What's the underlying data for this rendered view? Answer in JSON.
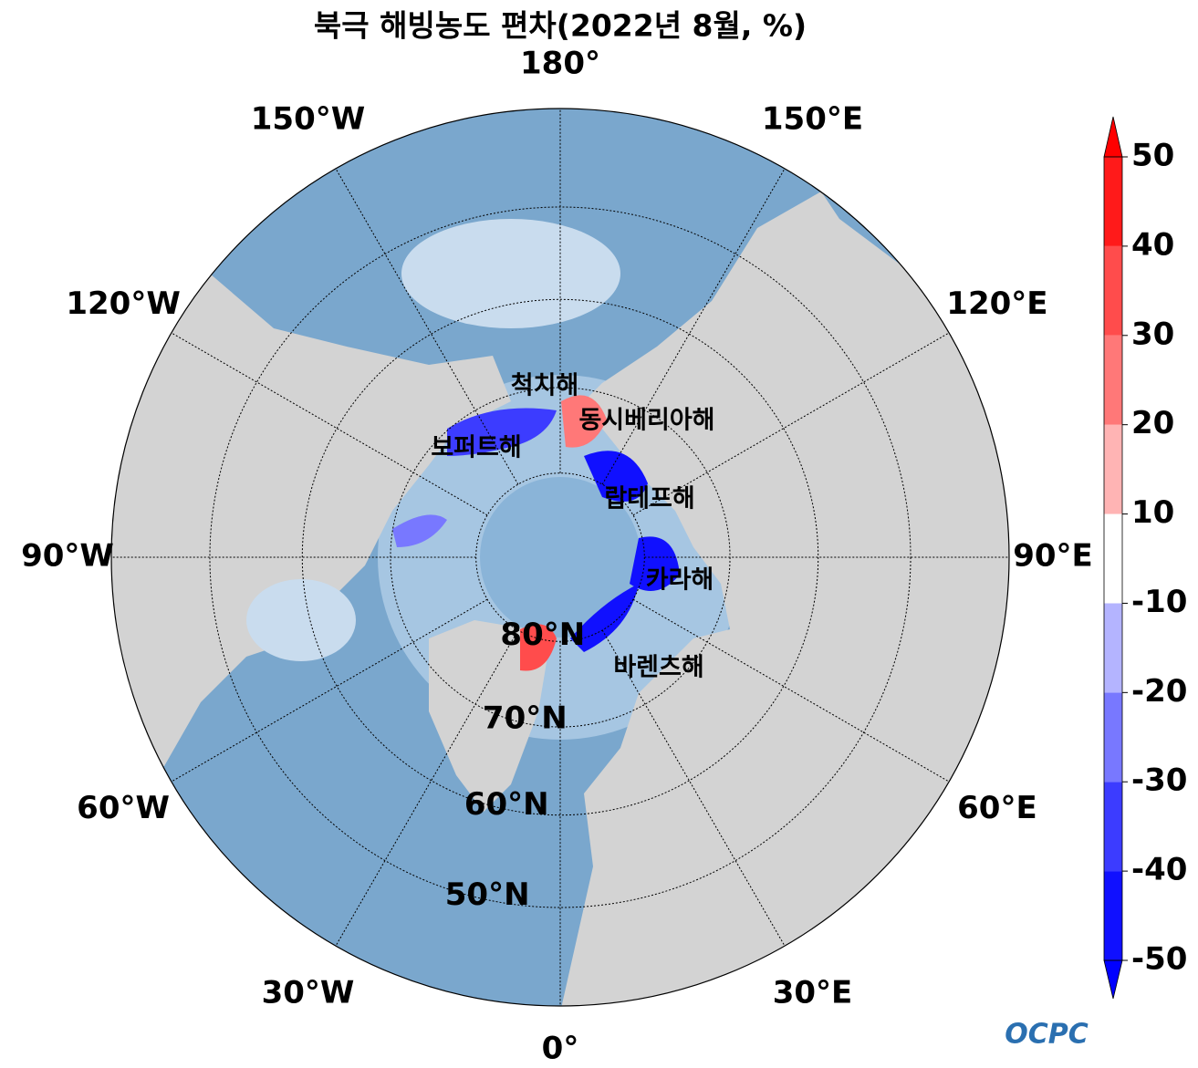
{
  "chart_data": {
    "type": "map",
    "title": "북극 해빙농도 편차(2022년 8월, %)",
    "projection": "north-polar-stereographic",
    "latlim": [
      40,
      90
    ],
    "parallels": [
      {
        "value": 80,
        "label": "80°N"
      },
      {
        "value": 70,
        "label": "70°N"
      },
      {
        "value": 60,
        "label": "60°N"
      },
      {
        "value": 50,
        "label": "50°N"
      }
    ],
    "meridians": [
      {
        "value": 180,
        "label": "180°"
      },
      {
        "value": 150,
        "label": "150°E"
      },
      {
        "value": 120,
        "label": "120°E"
      },
      {
        "value": 90,
        "label": "90°E"
      },
      {
        "value": 60,
        "label": "60°E"
      },
      {
        "value": 30,
        "label": "30°E"
      },
      {
        "value": 0,
        "label": "0°"
      },
      {
        "value": -30,
        "label": "30°W"
      },
      {
        "value": -60,
        "label": "60°W"
      },
      {
        "value": -90,
        "label": "90°W"
      },
      {
        "value": -120,
        "label": "120°W"
      },
      {
        "value": -150,
        "label": "150°W"
      }
    ],
    "annotations": [
      "척치해",
      "동시베리아해",
      "보퍼트해",
      "랍테프해",
      "카라해",
      "바렌츠해"
    ],
    "colorbar": {
      "ticks": [
        -50,
        -40,
        -30,
        -20,
        -10,
        10,
        20,
        30,
        40,
        50
      ],
      "colors": [
        "#1010ff",
        "#3c3cff",
        "#7878ff",
        "#b4b4ff",
        "#ffffff",
        "#ffb4b4",
        "#ff7878",
        "#ff4c4c",
        "#ff1a1a"
      ],
      "extend": "both",
      "under_color": "#0000ff",
      "over_color": "#ff0000"
    },
    "logo": "OCPC"
  }
}
